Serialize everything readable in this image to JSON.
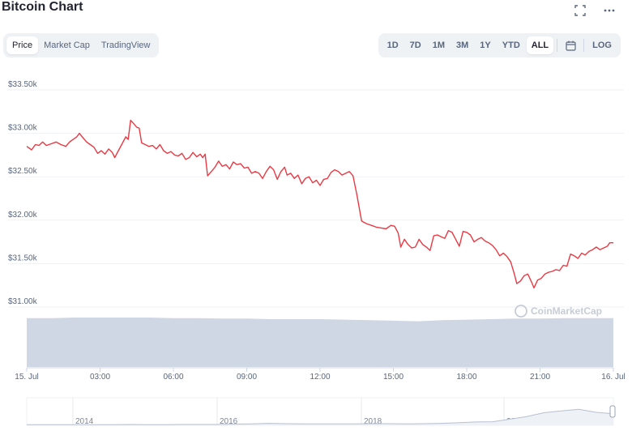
{
  "header": {
    "title": "Bitcoin Chart"
  },
  "toolbar": {
    "fullscreen_icon": "fullscreen-icon",
    "more_icon": "more-icon",
    "view_tabs": [
      {
        "label": "Price",
        "active": true
      },
      {
        "label": "Market Cap",
        "active": false
      },
      {
        "label": "TradingView",
        "active": false
      }
    ],
    "ranges": [
      {
        "label": "1D",
        "active": false
      },
      {
        "label": "7D",
        "active": false
      },
      {
        "label": "1M",
        "active": false
      },
      {
        "label": "3M",
        "active": false
      },
      {
        "label": "1Y",
        "active": false
      },
      {
        "label": "YTD",
        "active": false
      },
      {
        "label": "ALL",
        "active": true
      }
    ],
    "calendar_icon": "calendar-icon",
    "log_label": "LOG"
  },
  "watermark": "CoinMarketCap",
  "colors": {
    "line": "#ea3943",
    "volume": "#cfd6e4",
    "grid": "#eff2f5",
    "accent": "#3861fb"
  },
  "chart_data": {
    "type": "line",
    "title": "",
    "xlabel": "",
    "ylabel": "",
    "ylim": [
      31000,
      33500
    ],
    "yticks": [
      "$31.00k",
      "$31.50k",
      "$32.00k",
      "$32.50k",
      "$33.00k",
      "$33.50k"
    ],
    "xticks": [
      "15. Jul",
      "03:00",
      "06:00",
      "09:00",
      "12:00",
      "15:00",
      "18:00",
      "21:00",
      "16. Jul"
    ],
    "xtick_hours": [
      0,
      3,
      6,
      9,
      12,
      15,
      18,
      21,
      24
    ],
    "x_unit": "hours since 15. Jul 00:00",
    "series": [
      {
        "name": "",
        "points": [
          [
            0.0,
            32850
          ],
          [
            0.2,
            32810
          ],
          [
            0.35,
            32870
          ],
          [
            0.5,
            32860
          ],
          [
            0.65,
            32900
          ],
          [
            0.8,
            32860
          ],
          [
            1.0,
            32880
          ],
          [
            1.2,
            32900
          ],
          [
            1.4,
            32870
          ],
          [
            1.6,
            32850
          ],
          [
            1.75,
            32900
          ],
          [
            1.9,
            32930
          ],
          [
            2.05,
            32960
          ],
          [
            2.15,
            33000
          ],
          [
            2.3,
            32950
          ],
          [
            2.45,
            32900
          ],
          [
            2.6,
            32870
          ],
          [
            2.75,
            32840
          ],
          [
            2.9,
            32770
          ],
          [
            3.05,
            32800
          ],
          [
            3.2,
            32760
          ],
          [
            3.35,
            32820
          ],
          [
            3.5,
            32780
          ],
          [
            3.6,
            32720
          ],
          [
            3.75,
            32800
          ],
          [
            3.9,
            32880
          ],
          [
            4.05,
            32960
          ],
          [
            4.15,
            32930
          ],
          [
            4.25,
            33150
          ],
          [
            4.35,
            33120
          ],
          [
            4.5,
            33070
          ],
          [
            4.6,
            33060
          ],
          [
            4.7,
            32890
          ],
          [
            4.85,
            32870
          ],
          [
            5.0,
            32850
          ],
          [
            5.15,
            32860
          ],
          [
            5.3,
            32820
          ],
          [
            5.45,
            32870
          ],
          [
            5.6,
            32800
          ],
          [
            5.75,
            32770
          ],
          [
            5.9,
            32790
          ],
          [
            6.05,
            32750
          ],
          [
            6.2,
            32740
          ],
          [
            6.35,
            32770
          ],
          [
            6.5,
            32700
          ],
          [
            6.65,
            32720
          ],
          [
            6.8,
            32780
          ],
          [
            6.95,
            32730
          ],
          [
            7.1,
            32760
          ],
          [
            7.2,
            32720
          ],
          [
            7.3,
            32760
          ],
          [
            7.4,
            32510
          ],
          [
            7.55,
            32560
          ],
          [
            7.7,
            32610
          ],
          [
            7.85,
            32680
          ],
          [
            8.0,
            32620
          ],
          [
            8.15,
            32640
          ],
          [
            8.3,
            32590
          ],
          [
            8.45,
            32670
          ],
          [
            8.6,
            32640
          ],
          [
            8.75,
            32650
          ],
          [
            8.9,
            32600
          ],
          [
            9.05,
            32610
          ],
          [
            9.2,
            32540
          ],
          [
            9.35,
            32560
          ],
          [
            9.5,
            32540
          ],
          [
            9.65,
            32480
          ],
          [
            9.8,
            32560
          ],
          [
            9.95,
            32620
          ],
          [
            10.1,
            32580
          ],
          [
            10.25,
            32470
          ],
          [
            10.4,
            32560
          ],
          [
            10.55,
            32610
          ],
          [
            10.65,
            32520
          ],
          [
            10.8,
            32540
          ],
          [
            10.95,
            32480
          ],
          [
            11.1,
            32520
          ],
          [
            11.25,
            32420
          ],
          [
            11.4,
            32480
          ],
          [
            11.55,
            32500
          ],
          [
            11.7,
            32430
          ],
          [
            11.85,
            32460
          ],
          [
            12.0,
            32400
          ],
          [
            12.15,
            32470
          ],
          [
            12.3,
            32480
          ],
          [
            12.45,
            32550
          ],
          [
            12.6,
            32580
          ],
          [
            12.75,
            32560
          ],
          [
            12.9,
            32520
          ],
          [
            13.05,
            32540
          ],
          [
            13.2,
            32560
          ],
          [
            13.35,
            32510
          ],
          [
            13.5,
            32300
          ],
          [
            13.7,
            31990
          ],
          [
            13.9,
            31960
          ],
          [
            14.1,
            31940
          ],
          [
            14.3,
            31920
          ],
          [
            14.5,
            31910
          ],
          [
            14.7,
            31900
          ],
          [
            14.9,
            31940
          ],
          [
            15.05,
            31930
          ],
          [
            15.2,
            31850
          ],
          [
            15.3,
            31690
          ],
          [
            15.45,
            31780
          ],
          [
            15.6,
            31720
          ],
          [
            15.75,
            31680
          ],
          [
            15.9,
            31690
          ],
          [
            16.05,
            31780
          ],
          [
            16.2,
            31720
          ],
          [
            16.35,
            31690
          ],
          [
            16.5,
            31650
          ],
          [
            16.65,
            31820
          ],
          [
            16.8,
            31830
          ],
          [
            16.95,
            31810
          ],
          [
            17.1,
            31790
          ],
          [
            17.25,
            31880
          ],
          [
            17.4,
            31860
          ],
          [
            17.55,
            31780
          ],
          [
            17.7,
            31700
          ],
          [
            17.85,
            31870
          ],
          [
            18.0,
            31860
          ],
          [
            18.15,
            31830
          ],
          [
            18.3,
            31750
          ],
          [
            18.45,
            31780
          ],
          [
            18.6,
            31800
          ],
          [
            18.75,
            31760
          ],
          [
            18.9,
            31740
          ],
          [
            19.05,
            31710
          ],
          [
            19.2,
            31660
          ],
          [
            19.35,
            31590
          ],
          [
            19.5,
            31620
          ],
          [
            19.65,
            31580
          ],
          [
            19.8,
            31520
          ],
          [
            19.95,
            31380
          ],
          [
            20.05,
            31270
          ],
          [
            20.2,
            31300
          ],
          [
            20.35,
            31360
          ],
          [
            20.5,
            31380
          ],
          [
            20.65,
            31290
          ],
          [
            20.75,
            31220
          ],
          [
            20.9,
            31310
          ],
          [
            21.05,
            31330
          ],
          [
            21.2,
            31380
          ],
          [
            21.35,
            31400
          ],
          [
            21.5,
            31410
          ],
          [
            21.65,
            31430
          ],
          [
            21.8,
            31420
          ],
          [
            21.95,
            31480
          ],
          [
            22.1,
            31470
          ],
          [
            22.25,
            31610
          ],
          [
            22.4,
            31590
          ],
          [
            22.55,
            31560
          ],
          [
            22.7,
            31620
          ],
          [
            22.85,
            31600
          ],
          [
            23.0,
            31640
          ],
          [
            23.15,
            31660
          ],
          [
            23.3,
            31690
          ],
          [
            23.45,
            31660
          ],
          [
            23.6,
            31680
          ],
          [
            23.75,
            31700
          ],
          [
            23.85,
            31740
          ],
          [
            24.0,
            31740
          ]
        ]
      }
    ],
    "volume": {
      "ylim": [
        0,
        1
      ],
      "values": [
        0.92,
        0.92,
        0.93,
        0.93,
        0.93,
        0.93,
        0.92,
        0.92,
        0.91,
        0.91,
        0.9,
        0.9,
        0.9,
        0.89,
        0.88,
        0.87,
        0.86,
        0.88,
        0.89,
        0.9,
        0.91,
        0.91,
        0.92,
        0.92,
        0.92
      ]
    },
    "navigator": {
      "labels": [
        "2014",
        "2016",
        "2018",
        "2020"
      ],
      "series": [
        0.02,
        0.02,
        0.02,
        0.02,
        0.02,
        0.02,
        0.03,
        0.02,
        0.02,
        0.03,
        0.03,
        0.03,
        0.04,
        0.05,
        0.07,
        0.06,
        0.05,
        0.05,
        0.05,
        0.05,
        0.06,
        0.06,
        0.05,
        0.06,
        0.07,
        0.09,
        0.12,
        0.13,
        0.22,
        0.32,
        0.46,
        0.52,
        0.58,
        0.47,
        0.42
      ]
    }
  }
}
